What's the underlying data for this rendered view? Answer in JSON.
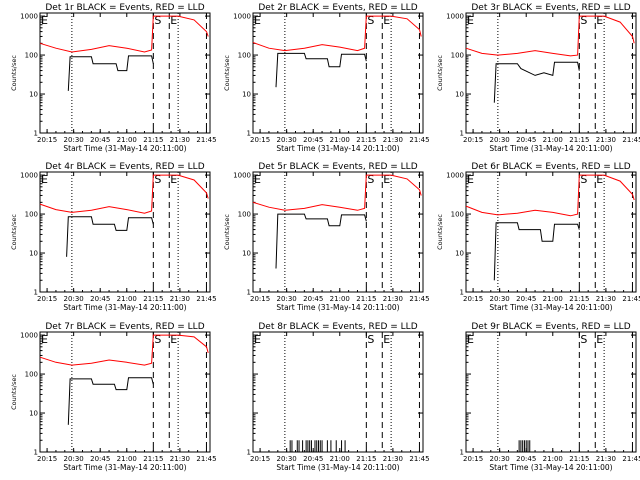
{
  "chart_data": [
    {
      "type": "line",
      "title": "Det 1r BLACK = Events, RED = LLD",
      "xlabel": "Start Time (31-May-14 20:11:00)",
      "ylabel": "Counts/sec",
      "y_scale": "log",
      "ylim": [
        1,
        1200
      ],
      "xlim": [
        "20:11",
        "21:47"
      ],
      "x_ticks": [
        "20:15",
        "20:30",
        "20:45",
        "21:00",
        "21:15",
        "21:30",
        "21:45"
      ],
      "y_ticks": [
        "1",
        "10",
        "100",
        "1000"
      ],
      "markers": [
        {
          "label": "E",
          "time": "20:11",
          "style": "dashed"
        },
        {
          "label": "",
          "time": "20:29",
          "style": "dotted"
        },
        {
          "label": "S",
          "time": "21:15",
          "style": "dashed"
        },
        {
          "label": "E",
          "time": "21:24",
          "style": "dashed"
        },
        {
          "label": "",
          "time": "21:29",
          "style": "dotted"
        },
        {
          "label": "",
          "time": "21:45",
          "style": "dashed"
        }
      ],
      "series": [
        {
          "color": "#ff0000",
          "x": [
            "20:11",
            "20:20",
            "20:29",
            "20:40",
            "20:50",
            "21:00",
            "21:10",
            "21:14",
            "21:15",
            "21:24",
            "21:29",
            "21:38",
            "21:45",
            "21:46"
          ],
          "values": [
            200,
            150,
            120,
            140,
            175,
            150,
            120,
            135,
            1000,
            1000,
            1000,
            800,
            400,
            300
          ]
        },
        {
          "color": "#000000",
          "x": [
            "20:27",
            "20:28",
            "20:40",
            "20:41",
            "20:54",
            "20:55",
            "21:00",
            "21:01",
            "21:14",
            "21:15"
          ],
          "values": [
            12,
            90,
            90,
            60,
            60,
            40,
            40,
            95,
            95,
            60
          ]
        }
      ]
    },
    {
      "type": "line",
      "title": "Det 2r BLACK = Events, RED = LLD",
      "xlabel": "Start Time (31-May-14 20:11:00)",
      "ylabel": "Counts/sec",
      "y_scale": "log",
      "ylim": [
        1,
        1200
      ],
      "xlim": [
        "20:11",
        "21:47"
      ],
      "x_ticks": [
        "20:15",
        "20:30",
        "20:45",
        "21:00",
        "21:15",
        "21:30",
        "21:45"
      ],
      "y_ticks": [
        "1",
        "10",
        "100",
        "1000"
      ],
      "markers": [
        {
          "label": "E",
          "time": "20:11",
          "style": "dashed"
        },
        {
          "label": "",
          "time": "20:29",
          "style": "dotted"
        },
        {
          "label": "S",
          "time": "21:15",
          "style": "dashed"
        },
        {
          "label": "E",
          "time": "21:24",
          "style": "dashed"
        },
        {
          "label": "",
          "time": "21:29",
          "style": "dotted"
        },
        {
          "label": "",
          "time": "21:45",
          "style": "dashed"
        }
      ],
      "series": [
        {
          "color": "#ff0000",
          "x": [
            "20:11",
            "20:20",
            "20:29",
            "20:40",
            "20:50",
            "21:00",
            "21:10",
            "21:14",
            "21:15",
            "21:24",
            "21:29",
            "21:38",
            "21:45",
            "21:46"
          ],
          "values": [
            210,
            150,
            130,
            150,
            185,
            160,
            130,
            150,
            1000,
            1000,
            1000,
            850,
            450,
            300
          ]
        },
        {
          "color": "#000000",
          "x": [
            "20:24",
            "20:25",
            "20:40",
            "20:41",
            "20:53",
            "20:54",
            "21:00",
            "21:01",
            "21:14",
            "21:15"
          ],
          "values": [
            15,
            110,
            110,
            80,
            80,
            50,
            50,
            105,
            105,
            70
          ]
        }
      ]
    },
    {
      "type": "line",
      "title": "Det 3r BLACK = Events, RED = LLD",
      "xlabel": "Start Time (31-May-14 20:11:00)",
      "ylabel": "Counts/sec",
      "y_scale": "log",
      "ylim": [
        1,
        1200
      ],
      "xlim": [
        "20:11",
        "21:47"
      ],
      "x_ticks": [
        "20:15",
        "20:30",
        "20:45",
        "21:00",
        "21:15",
        "21:30",
        "21:45"
      ],
      "y_ticks": [
        "1",
        "10",
        "100",
        "1000"
      ],
      "markers": [
        {
          "label": "E",
          "time": "20:11",
          "style": "dashed"
        },
        {
          "label": "",
          "time": "20:29",
          "style": "dotted"
        },
        {
          "label": "S",
          "time": "21:15",
          "style": "dashed"
        },
        {
          "label": "E",
          "time": "21:24",
          "style": "dashed"
        },
        {
          "label": "",
          "time": "21:29",
          "style": "dotted"
        },
        {
          "label": "",
          "time": "21:45",
          "style": "dashed"
        }
      ],
      "series": [
        {
          "color": "#ff0000",
          "x": [
            "20:11",
            "20:20",
            "20:29",
            "20:40",
            "20:50",
            "21:00",
            "21:10",
            "21:14",
            "21:15",
            "21:24",
            "21:29",
            "21:38",
            "21:45",
            "21:46"
          ],
          "values": [
            150,
            110,
            100,
            110,
            130,
            110,
            95,
            100,
            1000,
            1000,
            1000,
            700,
            300,
            200
          ]
        },
        {
          "color": "#000000",
          "x": [
            "20:27",
            "20:28",
            "20:40",
            "20:42",
            "20:50",
            "20:55",
            "21:00",
            "21:01",
            "21:14",
            "21:15"
          ],
          "values": [
            6,
            60,
            60,
            45,
            30,
            35,
            30,
            65,
            65,
            40
          ]
        }
      ]
    },
    {
      "type": "line",
      "title": "Det 4r BLACK = Events, RED = LLD",
      "xlabel": "Start Time (31-May-14 20:11:00)",
      "ylabel": "Counts/sec",
      "y_scale": "log",
      "ylim": [
        1,
        1200
      ],
      "xlim": [
        "20:11",
        "21:47"
      ],
      "x_ticks": [
        "20:15",
        "20:30",
        "20:45",
        "21:00",
        "21:15",
        "21:30",
        "21:45"
      ],
      "y_ticks": [
        "1",
        "10",
        "100",
        "1000"
      ],
      "markers": [
        {
          "label": "E",
          "time": "20:11",
          "style": "dashed"
        },
        {
          "label": "",
          "time": "20:29",
          "style": "dotted"
        },
        {
          "label": "S",
          "time": "21:15",
          "style": "dashed"
        },
        {
          "label": "E",
          "time": "21:24",
          "style": "dashed"
        },
        {
          "label": "",
          "time": "21:29",
          "style": "dotted"
        },
        {
          "label": "",
          "time": "21:45",
          "style": "dashed"
        }
      ],
      "series": [
        {
          "color": "#ff0000",
          "x": [
            "20:11",
            "20:20",
            "20:29",
            "20:40",
            "20:50",
            "21:00",
            "21:10",
            "21:14",
            "21:15",
            "21:24",
            "21:29",
            "21:38",
            "21:45",
            "21:46"
          ],
          "values": [
            180,
            130,
            110,
            125,
            155,
            130,
            105,
            120,
            1000,
            1000,
            1000,
            750,
            350,
            250
          ]
        },
        {
          "color": "#000000",
          "x": [
            "20:26",
            "20:27",
            "20:40",
            "20:41",
            "20:53",
            "20:54",
            "21:00",
            "21:01",
            "21:14",
            "21:15"
          ],
          "values": [
            8,
            85,
            85,
            55,
            55,
            38,
            38,
            80,
            80,
            55
          ]
        }
      ]
    },
    {
      "type": "line",
      "title": "Det 5r BLACK = Events, RED = LLD",
      "xlabel": "Start Time (31-May-14 20:11:00)",
      "ylabel": "Counts/sec",
      "y_scale": "log",
      "ylim": [
        1,
        1200
      ],
      "xlim": [
        "20:11",
        "21:47"
      ],
      "x_ticks": [
        "20:15",
        "20:30",
        "20:45",
        "21:00",
        "21:15",
        "21:30",
        "21:45"
      ],
      "y_ticks": [
        "1",
        "10",
        "100",
        "1000"
      ],
      "markers": [
        {
          "label": "E",
          "time": "20:11",
          "style": "dashed"
        },
        {
          "label": "",
          "time": "20:29",
          "style": "dotted"
        },
        {
          "label": "S",
          "time": "21:15",
          "style": "dashed"
        },
        {
          "label": "E",
          "time": "21:24",
          "style": "dashed"
        },
        {
          "label": "",
          "time": "21:29",
          "style": "dotted"
        },
        {
          "label": "",
          "time": "21:45",
          "style": "dashed"
        }
      ],
      "series": [
        {
          "color": "#ff0000",
          "x": [
            "20:11",
            "20:20",
            "20:29",
            "20:40",
            "20:50",
            "21:00",
            "21:10",
            "21:14",
            "21:15",
            "21:24",
            "21:29",
            "21:38",
            "21:45",
            "21:46"
          ],
          "values": [
            200,
            150,
            125,
            140,
            175,
            150,
            125,
            140,
            1000,
            1000,
            1000,
            800,
            420,
            300
          ]
        },
        {
          "color": "#000000",
          "x": [
            "20:24",
            "20:25",
            "20:40",
            "20:41",
            "20:53",
            "20:54",
            "21:00",
            "21:01",
            "21:14",
            "21:15"
          ],
          "values": [
            4,
            100,
            100,
            75,
            75,
            50,
            50,
            95,
            95,
            65
          ]
        }
      ]
    },
    {
      "type": "line",
      "title": "Det 6r BLACK = Events, RED = LLD",
      "xlabel": "Start Time (31-May-14 20:11:00)",
      "ylabel": "Counts/sec",
      "y_scale": "log",
      "ylim": [
        1,
        1200
      ],
      "xlim": [
        "20:11",
        "21:47"
      ],
      "x_ticks": [
        "20:15",
        "20:30",
        "20:45",
        "21:00",
        "21:15",
        "21:30",
        "21:45"
      ],
      "y_ticks": [
        "1",
        "10",
        "100",
        "1000"
      ],
      "markers": [
        {
          "label": "E",
          "time": "20:11",
          "style": "dashed"
        },
        {
          "label": "",
          "time": "20:29",
          "style": "dotted"
        },
        {
          "label": "S",
          "time": "21:15",
          "style": "dashed"
        },
        {
          "label": "E",
          "time": "21:24",
          "style": "dashed"
        },
        {
          "label": "",
          "time": "21:29",
          "style": "dotted"
        },
        {
          "label": "",
          "time": "21:45",
          "style": "dashed"
        }
      ],
      "series": [
        {
          "color": "#ff0000",
          "x": [
            "20:11",
            "20:20",
            "20:29",
            "20:40",
            "20:50",
            "21:00",
            "21:10",
            "21:14",
            "21:15",
            "21:24",
            "21:29",
            "21:38",
            "21:45",
            "21:46"
          ],
          "values": [
            160,
            110,
            95,
            105,
            125,
            110,
            90,
            100,
            1000,
            1000,
            1000,
            700,
            320,
            230
          ]
        },
        {
          "color": "#000000",
          "x": [
            "20:27",
            "20:28",
            "20:40",
            "20:41",
            "20:53",
            "20:54",
            "21:00",
            "21:01",
            "21:14",
            "21:15"
          ],
          "values": [
            2,
            60,
            60,
            40,
            40,
            20,
            20,
            55,
            55,
            40
          ]
        }
      ]
    },
    {
      "type": "line",
      "title": "Det 7r BLACK = Events, RED = LLD",
      "xlabel": "Start Time (31-May-14 20:11:00)",
      "ylabel": "Counts/sec",
      "y_scale": "log",
      "ylim": [
        1,
        1200
      ],
      "xlim": [
        "20:11",
        "21:47"
      ],
      "x_ticks": [
        "20:15",
        "20:30",
        "20:45",
        "21:00",
        "21:15",
        "21:30",
        "21:45"
      ],
      "y_ticks": [
        "1",
        "10",
        "100",
        "1000"
      ],
      "markers": [
        {
          "label": "E",
          "time": "20:11",
          "style": "dashed"
        },
        {
          "label": "",
          "time": "20:29",
          "style": "dotted"
        },
        {
          "label": "S",
          "time": "21:15",
          "style": "dashed"
        },
        {
          "label": "E",
          "time": "21:24",
          "style": "dashed"
        },
        {
          "label": "",
          "time": "21:29",
          "style": "dotted"
        },
        {
          "label": "",
          "time": "21:45",
          "style": "dashed"
        }
      ],
      "series": [
        {
          "color": "#ff0000",
          "x": [
            "20:11",
            "20:20",
            "20:29",
            "20:40",
            "20:50",
            "21:00",
            "21:10",
            "21:14",
            "21:15",
            "21:24",
            "21:29",
            "21:38",
            "21:45",
            "21:46"
          ],
          "values": [
            270,
            200,
            170,
            190,
            230,
            200,
            170,
            190,
            1000,
            1000,
            1000,
            900,
            500,
            350
          ]
        },
        {
          "color": "#000000",
          "x": [
            "20:27",
            "20:28",
            "20:40",
            "20:41",
            "20:53",
            "20:54",
            "21:00",
            "21:01",
            "21:14",
            "21:15"
          ],
          "values": [
            5,
            75,
            75,
            55,
            55,
            40,
            40,
            80,
            80,
            55
          ]
        }
      ]
    },
    {
      "type": "line",
      "title": "Det 8r BLACK = Events, RED = LLD",
      "xlabel": "Start Time (31-May-14 20:11:00)",
      "ylabel": "",
      "y_scale": "log",
      "ylim": [
        1,
        1200
      ],
      "xlim": [
        "20:11",
        "21:47"
      ],
      "x_ticks": [
        "20:15",
        "20:30",
        "20:45",
        "21:00",
        "21:15",
        "21:30",
        "21:45"
      ],
      "y_ticks": [
        "1"
      ],
      "markers": [
        {
          "label": "E",
          "time": "20:11",
          "style": "dashed"
        },
        {
          "label": "",
          "time": "20:29",
          "style": "dotted"
        },
        {
          "label": "S",
          "time": "21:15",
          "style": "dashed"
        },
        {
          "label": "E",
          "time": "21:24",
          "style": "dashed"
        },
        {
          "label": "",
          "time": "21:29",
          "style": "dotted"
        },
        {
          "label": "",
          "time": "21:45",
          "style": "dashed"
        }
      ],
      "series": [
        {
          "color": "#000000",
          "style": "spikes",
          "x": [
            "20:32",
            "20:33",
            "20:36",
            "20:37",
            "20:39",
            "20:41",
            "20:42",
            "20:43",
            "20:44",
            "20:46",
            "20:47",
            "20:48",
            "20:49",
            "20:50",
            "20:53",
            "20:55",
            "20:58",
            "21:01",
            "21:03"
          ],
          "values": [
            2,
            2,
            2,
            2,
            2,
            2,
            2,
            2,
            2,
            2,
            2,
            2,
            2,
            2,
            2,
            2,
            2,
            2,
            2
          ]
        }
      ]
    },
    {
      "type": "line",
      "title": "Det 9r BLACK = Events, RED = LLD",
      "xlabel": "Start Time (31-May-14 20:11:00)",
      "ylabel": "",
      "y_scale": "log",
      "ylim": [
        1,
        1200
      ],
      "xlim": [
        "20:11",
        "21:47"
      ],
      "x_ticks": [
        "20:15",
        "20:30",
        "20:45",
        "21:00",
        "21:15",
        "21:30",
        "21:45"
      ],
      "y_ticks": [
        "1"
      ],
      "markers": [
        {
          "label": "E",
          "time": "20:11",
          "style": "dashed"
        },
        {
          "label": "",
          "time": "20:29",
          "style": "dotted"
        },
        {
          "label": "S",
          "time": "21:15",
          "style": "dashed"
        },
        {
          "label": "E",
          "time": "21:24",
          "style": "dashed"
        },
        {
          "label": "",
          "time": "21:29",
          "style": "dotted"
        },
        {
          "label": "",
          "time": "21:45",
          "style": "dashed"
        }
      ],
      "series": [
        {
          "color": "#000000",
          "style": "spikes",
          "x": [
            "20:41",
            "20:42",
            "20:43",
            "20:44",
            "20:45",
            "20:46",
            "20:47"
          ],
          "values": [
            2,
            2,
            2,
            2,
            2,
            2,
            2
          ]
        }
      ]
    }
  ]
}
